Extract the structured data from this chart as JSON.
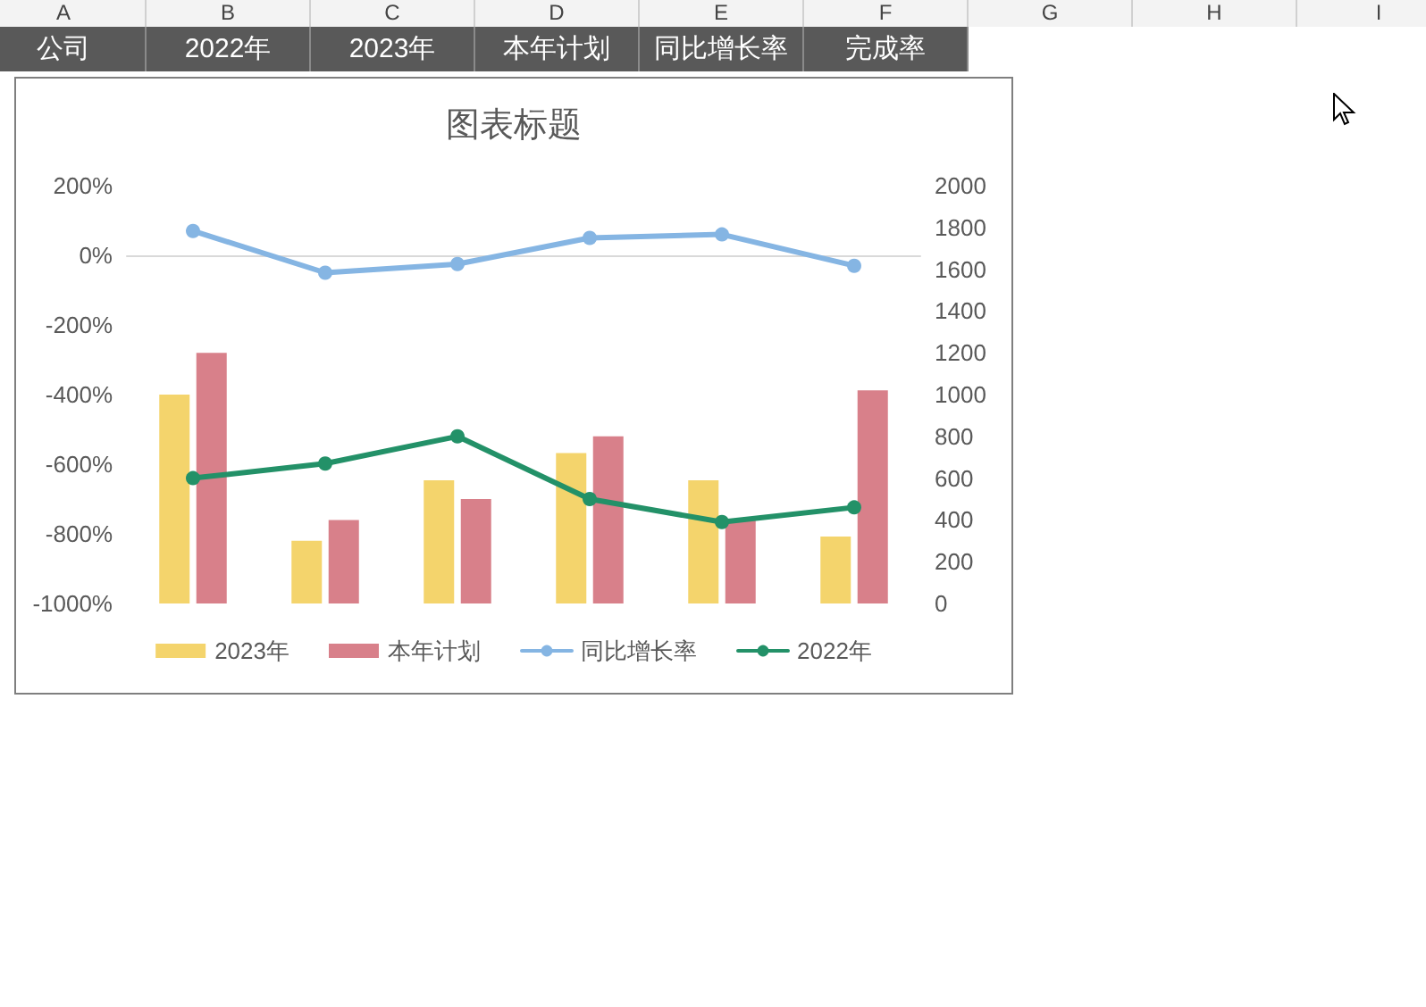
{
  "chart_data": {
    "type": "bar",
    "title": "图表标题",
    "annotations": [
      "A",
      "B",
      "C",
      "D",
      "E",
      "F",
      "G",
      "H",
      "I",
      "公司",
      "2022年",
      "2023年",
      "本年计划",
      "同比增长率",
      "完成率"
    ],
    "categories": [
      null,
      null,
      null,
      null,
      null,
      null
    ],
    "series": [
      {
        "name": "2023年",
        "axis": "y2",
        "color": "#f4d46c",
        "values": [
          1000,
          300,
          590,
          720,
          590,
          320
        ]
      },
      {
        "name": "本年计划",
        "axis": "y2",
        "color": "#d8808a",
        "values": [
          1200,
          400,
          500,
          800,
          400,
          1020
        ]
      },
      {
        "name": "同比增长率",
        "type": "line",
        "color": "#85b5e3",
        "values": [
          70,
          -50,
          -25,
          50,
          60,
          -30
        ]
      },
      {
        "name": "2022年",
        "type": "line",
        "axis": "y2",
        "color": "#239168",
        "values": [
          600,
          670,
          800,
          500,
          390,
          460
        ]
      }
    ],
    "ylim": [
      -1000,
      200
    ],
    "yticks": [
      {
        "value": -1000,
        "label": "-1000%"
      },
      {
        "value": -800,
        "label": "-800%"
      },
      {
        "value": -600,
        "label": "-600%"
      },
      {
        "value": -400,
        "label": "-400%"
      },
      {
        "value": -200,
        "label": "-200%"
      },
      {
        "value": 0,
        "label": "0%"
      },
      {
        "value": 200,
        "label": "200%"
      }
    ],
    "y2lim": [
      0,
      2000
    ],
    "y2ticks": [
      0,
      200,
      400,
      600,
      800,
      1000,
      1200,
      1400,
      1600,
      1800,
      2000
    ],
    "legend": "bottom",
    "marker": "circle"
  }
}
